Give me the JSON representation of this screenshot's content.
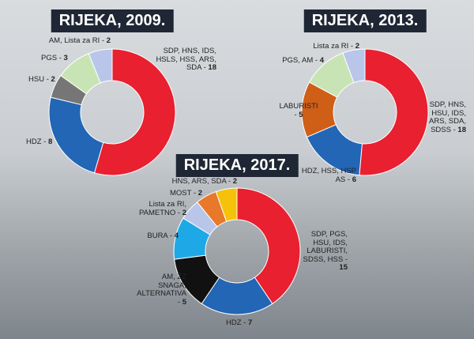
{
  "chart_data": [
    {
      "type": "donut",
      "title": "RIJEKA, 2009.",
      "categories": [
        "SDP, HNS, IDS, HSLS, HSS, ARS, SDA -",
        "HDZ -",
        "HSU -",
        "PGS -",
        "AM, Lista za RI -"
      ],
      "values": [
        18,
        8,
        2,
        3,
        2
      ],
      "colors": [
        "#e8202f",
        "#2266b5",
        "#767676",
        "#c8e4b4",
        "#b9c6ea"
      ]
    },
    {
      "type": "donut",
      "title": "RIJEKA, 2013.",
      "categories": [
        "SDP, HNS, HSU, IDS, ARS, SDA, SDSS -",
        "HDZ, HSS, HSP AS -",
        "LABURISTI -",
        "PGS, AM -",
        "Lista za RI -"
      ],
      "values": [
        18,
        6,
        5,
        4,
        2
      ],
      "colors": [
        "#e8202f",
        "#2266b5",
        "#cf5e17",
        "#c8e4b4",
        "#b9c6ea"
      ]
    },
    {
      "type": "donut",
      "title": "RIJEKA, 2017.",
      "categories": [
        "SDP, PGS, HSU, IDS, LABURISTI, SDSS, HSS -",
        "HDZ -",
        "AM, ŽZ SNAGA, ALTERNATIVA -",
        "BURA -",
        "Lista za RI, PAMETNO -",
        "MOST -",
        "HNS, ARS, SDA -"
      ],
      "values": [
        15,
        7,
        5,
        4,
        2,
        2,
        2
      ],
      "colors": [
        "#e8202f",
        "#2266b5",
        "#111111",
        "#1ea9e6",
        "#b9c6ea",
        "#e8782a",
        "#f5c10a"
      ]
    }
  ]
}
